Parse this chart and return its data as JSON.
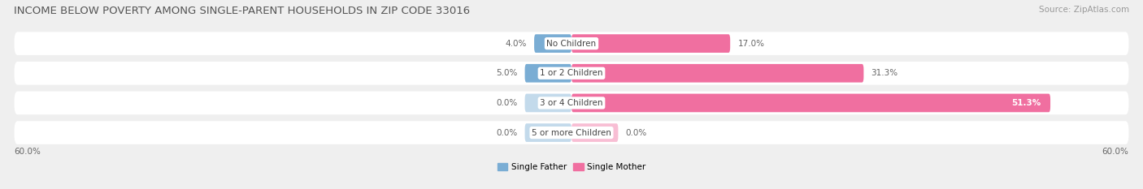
{
  "title": "INCOME BELOW POVERTY AMONG SINGLE-PARENT HOUSEHOLDS IN ZIP CODE 33016",
  "source": "Source: ZipAtlas.com",
  "categories": [
    "No Children",
    "1 or 2 Children",
    "3 or 4 Children",
    "5 or more Children"
  ],
  "father_values": [
    4.0,
    5.0,
    0.0,
    0.0
  ],
  "mother_values": [
    17.0,
    31.3,
    51.3,
    0.0
  ],
  "father_color": "#7aadd4",
  "mother_color": "#f06fa0",
  "axis_max": 60.0,
  "bar_height": 0.62,
  "background_color": "#efefef",
  "row_bg_color": "#e8e8e8",
  "legend_father": "Single Father",
  "legend_mother": "Single Mother",
  "title_fontsize": 9.5,
  "source_fontsize": 7.5,
  "label_fontsize": 7.5,
  "category_fontsize": 7.5,
  "zero_stub": 5.0
}
